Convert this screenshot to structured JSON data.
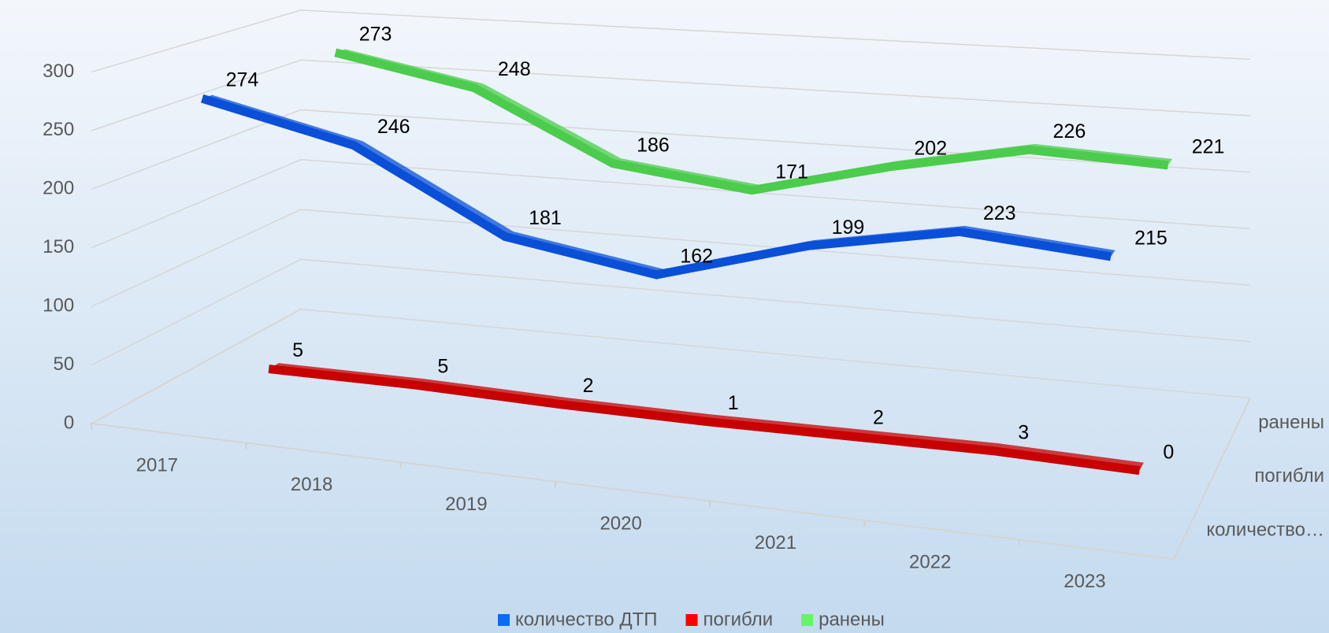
{
  "chart_data": {
    "type": "line3d",
    "categories": [
      "2017",
      "2018",
      "2019",
      "2020",
      "2021",
      "2022",
      "2023"
    ],
    "series": [
      {
        "name": "количество ДТП",
        "color": "#0a4fd8",
        "legend_color": "#0a6cf5",
        "values": [
          274,
          246,
          181,
          162,
          199,
          223,
          215
        ]
      },
      {
        "name": "погибли",
        "color": "#c80000",
        "legend_color": "#ff0000",
        "values": [
          5,
          5,
          2,
          1,
          2,
          3,
          0
        ]
      },
      {
        "name": "ранены",
        "color": "#4ccc4c",
        "legend_color": "#66f566",
        "values": [
          273,
          248,
          186,
          171,
          202,
          226,
          221
        ]
      }
    ],
    "depth_labels": [
      "количество…",
      "погибли",
      "ранены"
    ],
    "ylim": [
      0,
      300
    ],
    "yticks": [
      0,
      50,
      100,
      150,
      200,
      250,
      300
    ],
    "grid": true,
    "legend": "bottom"
  }
}
